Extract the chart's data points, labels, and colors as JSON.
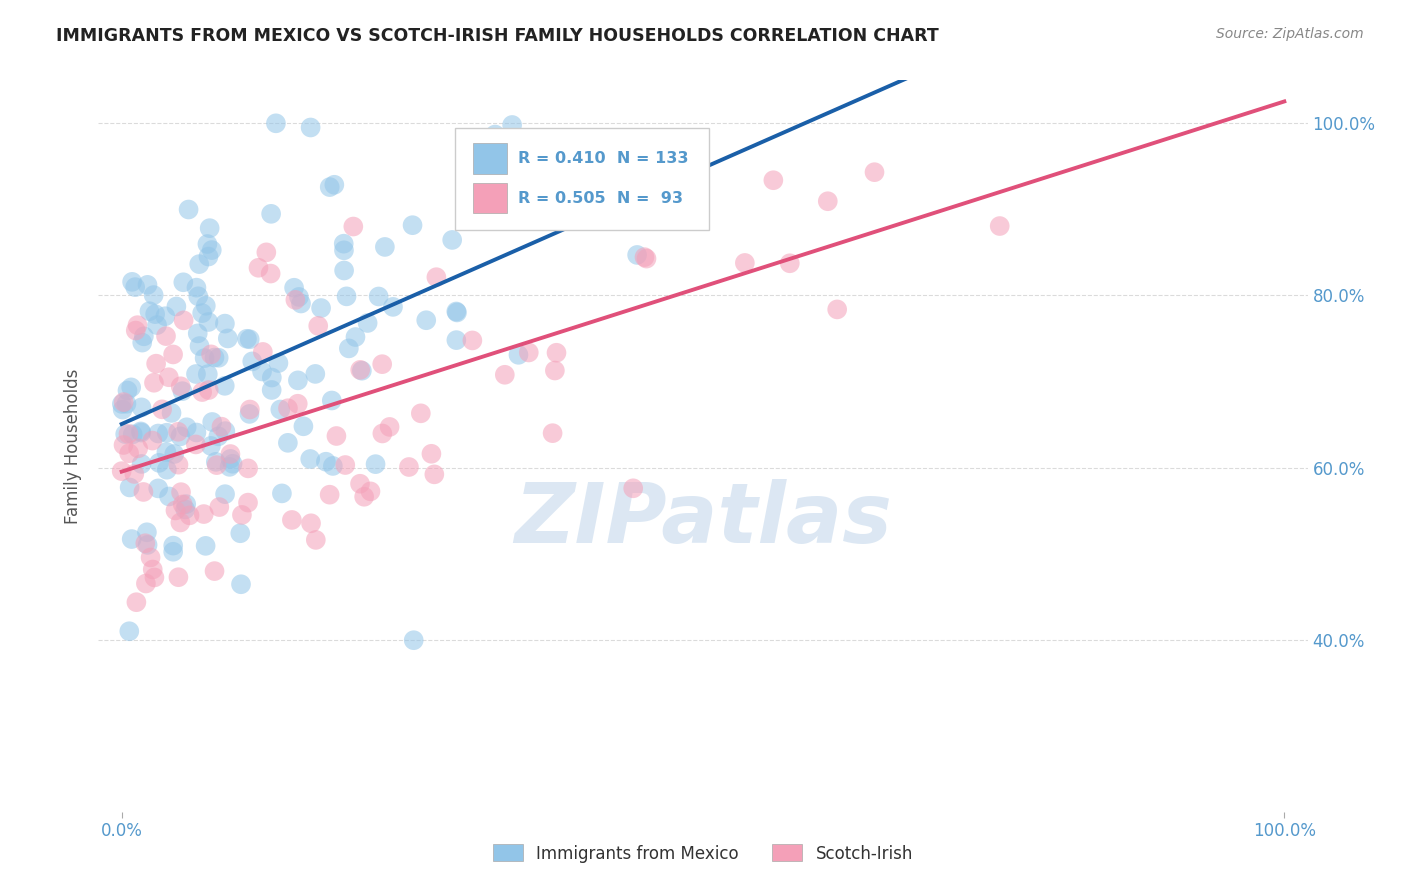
{
  "title": "IMMIGRANTS FROM MEXICO VS SCOTCH-IRISH FAMILY HOUSEHOLDS CORRELATION CHART",
  "source": "Source: ZipAtlas.com",
  "ylabel": "Family Households",
  "legend_blue_label": "Immigrants from Mexico",
  "legend_pink_label": "Scotch-Irish",
  "R_blue": 0.41,
  "N_blue": 133,
  "R_pink": 0.505,
  "N_pink": 93,
  "color_blue": "#92C5E8",
  "color_pink": "#F4A0B8",
  "line_color_blue": "#1A5FA8",
  "line_color_pink": "#E0507A",
  "background_color": "#FFFFFF",
  "grid_color": "#CCCCCC",
  "watermark": "ZIPatlas",
  "watermark_color": "#C5D8EC",
  "title_color": "#222222",
  "source_color": "#888888",
  "axis_label_color": "#5599CC",
  "ylabel_color": "#555555",
  "xlim": [
    -2,
    102
  ],
  "ylim": [
    20,
    105
  ],
  "yticks": [
    40,
    60,
    80,
    100
  ],
  "ytick_labels": [
    "40.0%",
    "60.0%",
    "80.0%",
    "100.0%"
  ],
  "scatter_alpha": 0.55,
  "scatter_size": 200
}
